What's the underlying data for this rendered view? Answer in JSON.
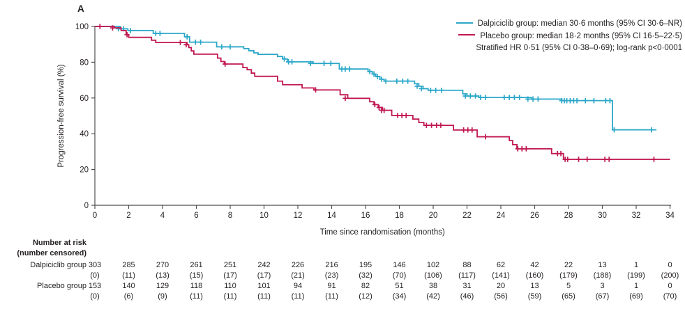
{
  "panel_label": "A",
  "colors": {
    "dalpiciclib": "#2BA7C9",
    "placebo": "#C01752",
    "axis": "#4d4d4f",
    "text": "#231f20"
  },
  "legend": {
    "items": [
      {
        "label": "Dalpiciclib group: median 30·6 months (95% CI 30·6–NR)",
        "color_key": "dalpiciclib"
      },
      {
        "label": "Placebo group: median 18·2 months (95% CI 16·5–22·5)",
        "color_key": "placebo"
      }
    ],
    "annotation": "Stratified HR 0·51 (95% CI 0·38–0·69); log-rank p<0·0001"
  },
  "chart_data": {
    "type": "line",
    "subtype": "kaplan-meier-step",
    "title": "",
    "xlabel": "Time since randomisation (months)",
    "ylabel": "Progression-free survival (%)",
    "xlim": [
      0,
      34
    ],
    "ylim": [
      0,
      100
    ],
    "xticks": [
      0,
      2,
      4,
      6,
      8,
      10,
      12,
      14,
      16,
      18,
      20,
      22,
      24,
      26,
      28,
      30,
      32,
      34
    ],
    "yticks": [
      0,
      20,
      40,
      60,
      80,
      100
    ],
    "grid": false,
    "legend_position": "top-right",
    "series": [
      {
        "name": "Dalpiciclib group",
        "color_key": "dalpiciclib",
        "end": 33.2,
        "steps": [
          [
            0,
            100
          ],
          [
            1.5,
            98.7
          ],
          [
            1.95,
            97.7
          ],
          [
            3.45,
            96.1
          ],
          [
            5.3,
            94.2
          ],
          [
            5.6,
            91.2
          ],
          [
            7.2,
            88.6
          ],
          [
            8.8,
            87.6
          ],
          [
            9.1,
            86.4
          ],
          [
            9.4,
            85.2
          ],
          [
            9.65,
            84.4
          ],
          [
            10.8,
            83.2
          ],
          [
            11.1,
            81.8
          ],
          [
            11.4,
            80.2
          ],
          [
            12.9,
            79.3
          ],
          [
            14.45,
            76.2
          ],
          [
            16.15,
            74.8
          ],
          [
            16.4,
            73.4
          ],
          [
            16.6,
            72.0
          ],
          [
            16.85,
            70.5
          ],
          [
            17.1,
            69.4
          ],
          [
            18.9,
            68.0
          ],
          [
            19.15,
            66.6
          ],
          [
            19.4,
            65.2
          ],
          [
            19.7,
            64.3
          ],
          [
            21.75,
            62.3
          ],
          [
            22.0,
            61.1
          ],
          [
            22.7,
            60.3
          ],
          [
            25.8,
            59.4
          ],
          [
            27.6,
            58.5
          ],
          [
            30.6,
            42.2
          ]
        ],
        "censors": [
          [
            1.4,
            98.7
          ],
          [
            1.7,
            98.7
          ],
          [
            2.1,
            97.7
          ],
          [
            3.6,
            96.1
          ],
          [
            3.85,
            96.1
          ],
          [
            5.45,
            94.2
          ],
          [
            5.95,
            91.2
          ],
          [
            6.25,
            91.2
          ],
          [
            7.5,
            88.6
          ],
          [
            8.0,
            88.6
          ],
          [
            11.2,
            81.8
          ],
          [
            11.45,
            80.2
          ],
          [
            11.65,
            80.2
          ],
          [
            12.75,
            79.3
          ],
          [
            13.55,
            79.3
          ],
          [
            13.95,
            79.3
          ],
          [
            14.6,
            76.2
          ],
          [
            14.8,
            76.2
          ],
          [
            15.05,
            76.2
          ],
          [
            16.25,
            74.8
          ],
          [
            16.5,
            73.4
          ],
          [
            16.7,
            72.0
          ],
          [
            16.95,
            70.5
          ],
          [
            17.2,
            69.4
          ],
          [
            17.85,
            69.4
          ],
          [
            18.2,
            69.4
          ],
          [
            18.5,
            69.4
          ],
          [
            19.05,
            66.6
          ],
          [
            19.3,
            65.2
          ],
          [
            19.85,
            64.3
          ],
          [
            20.15,
            64.3
          ],
          [
            20.5,
            64.3
          ],
          [
            21.9,
            61.1
          ],
          [
            22.2,
            61.1
          ],
          [
            22.5,
            61.1
          ],
          [
            22.8,
            60.3
          ],
          [
            23.1,
            60.3
          ],
          [
            24.2,
            60.3
          ],
          [
            24.5,
            60.3
          ],
          [
            24.8,
            60.3
          ],
          [
            25.1,
            60.3
          ],
          [
            25.6,
            59.4
          ],
          [
            25.9,
            59.4
          ],
          [
            26.2,
            59.4
          ],
          [
            27.6,
            58.5
          ],
          [
            27.75,
            58.5
          ],
          [
            27.9,
            58.5
          ],
          [
            28.1,
            58.5
          ],
          [
            28.3,
            58.5
          ],
          [
            28.5,
            58.5
          ],
          [
            29.0,
            58.5
          ],
          [
            29.5,
            58.5
          ],
          [
            30.2,
            58.5
          ],
          [
            30.45,
            58.5
          ],
          [
            30.7,
            42.2
          ],
          [
            32.9,
            42.2
          ]
        ]
      },
      {
        "name": "Placebo group",
        "color_key": "placebo",
        "end": 34,
        "steps": [
          [
            0,
            100
          ],
          [
            1.15,
            99.2
          ],
          [
            1.55,
            97.7
          ],
          [
            1.85,
            95.4
          ],
          [
            2.0,
            93.9
          ],
          [
            3.35,
            92.3
          ],
          [
            3.6,
            91.0
          ],
          [
            5.45,
            89.8
          ],
          [
            5.55,
            88.2
          ],
          [
            5.7,
            86.3
          ],
          [
            5.85,
            84.5
          ],
          [
            7.25,
            82.3
          ],
          [
            7.45,
            80.4
          ],
          [
            7.65,
            79.0
          ],
          [
            8.75,
            77.0
          ],
          [
            9.0,
            75.8
          ],
          [
            9.25,
            73.9
          ],
          [
            9.45,
            72.1
          ],
          [
            10.8,
            69.4
          ],
          [
            11.1,
            67.4
          ],
          [
            12.25,
            65.6
          ],
          [
            12.95,
            64.5
          ],
          [
            14.5,
            61.8
          ],
          [
            14.95,
            59.8
          ],
          [
            16.25,
            57.9
          ],
          [
            16.5,
            56.3
          ],
          [
            16.75,
            54.7
          ],
          [
            17.0,
            53.1
          ],
          [
            17.55,
            50.2
          ],
          [
            18.8,
            48.2
          ],
          [
            19.15,
            46.3
          ],
          [
            19.45,
            44.7
          ],
          [
            21.2,
            42.1
          ],
          [
            22.6,
            38.3
          ],
          [
            24.5,
            36.2
          ],
          [
            24.7,
            33.9
          ],
          [
            24.95,
            31.6
          ],
          [
            27.0,
            28.9
          ],
          [
            27.7,
            25.7
          ]
        ],
        "censors": [
          [
            0.3,
            100
          ],
          [
            1.05,
            99.2
          ],
          [
            1.9,
            95.4
          ],
          [
            5.05,
            91.0
          ],
          [
            5.4,
            89.8
          ],
          [
            7.7,
            79.0
          ],
          [
            13.05,
            64.5
          ],
          [
            14.8,
            59.8
          ],
          [
            16.55,
            56.3
          ],
          [
            16.8,
            54.7
          ],
          [
            16.95,
            53.1
          ],
          [
            17.1,
            53.1
          ],
          [
            17.9,
            50.2
          ],
          [
            18.15,
            50.2
          ],
          [
            18.4,
            50.2
          ],
          [
            19.6,
            44.7
          ],
          [
            19.9,
            44.7
          ],
          [
            20.2,
            44.7
          ],
          [
            20.45,
            44.7
          ],
          [
            21.8,
            42.1
          ],
          [
            22.05,
            42.1
          ],
          [
            22.3,
            42.1
          ],
          [
            23.1,
            38.3
          ],
          [
            25.0,
            31.6
          ],
          [
            25.25,
            31.6
          ],
          [
            25.5,
            31.6
          ],
          [
            27.35,
            28.9
          ],
          [
            27.55,
            28.9
          ],
          [
            27.8,
            25.7
          ],
          [
            27.95,
            25.7
          ],
          [
            28.6,
            25.7
          ],
          [
            29.1,
            25.7
          ],
          [
            30.15,
            25.7
          ],
          [
            30.4,
            25.7
          ],
          [
            33.05,
            25.7
          ]
        ]
      }
    ]
  },
  "risk_table": {
    "header_line1": "Number at risk",
    "header_line2": "(number censored)",
    "rows": [
      {
        "label": "Dalpiciclib group",
        "at_risk": [
          "303",
          "285",
          "270",
          "261",
          "251",
          "242",
          "226",
          "216",
          "195",
          "146",
          "102",
          "88",
          "62",
          "42",
          "22",
          "13",
          "1",
          "0"
        ],
        "censored": [
          "(0)",
          "(11)",
          "(13)",
          "(15)",
          "(17)",
          "(17)",
          "(21)",
          "(23)",
          "(32)",
          "(70)",
          "(106)",
          "(117)",
          "(141)",
          "(160)",
          "(179)",
          "(188)",
          "(199)",
          "(200)"
        ]
      },
      {
        "label": "Placebo group",
        "at_risk": [
          "153",
          "140",
          "129",
          "118",
          "110",
          "101",
          "94",
          "91",
          "82",
          "51",
          "38",
          "31",
          "20",
          "13",
          "5",
          "3",
          "1",
          "0"
        ],
        "censored": [
          "(0)",
          "(6)",
          "(9)",
          "(11)",
          "(11)",
          "(11)",
          "(11)",
          "(11)",
          "(12)",
          "(34)",
          "(42)",
          "(46)",
          "(56)",
          "(59)",
          "(65)",
          "(67)",
          "(69)",
          "(70)"
        ]
      }
    ]
  }
}
